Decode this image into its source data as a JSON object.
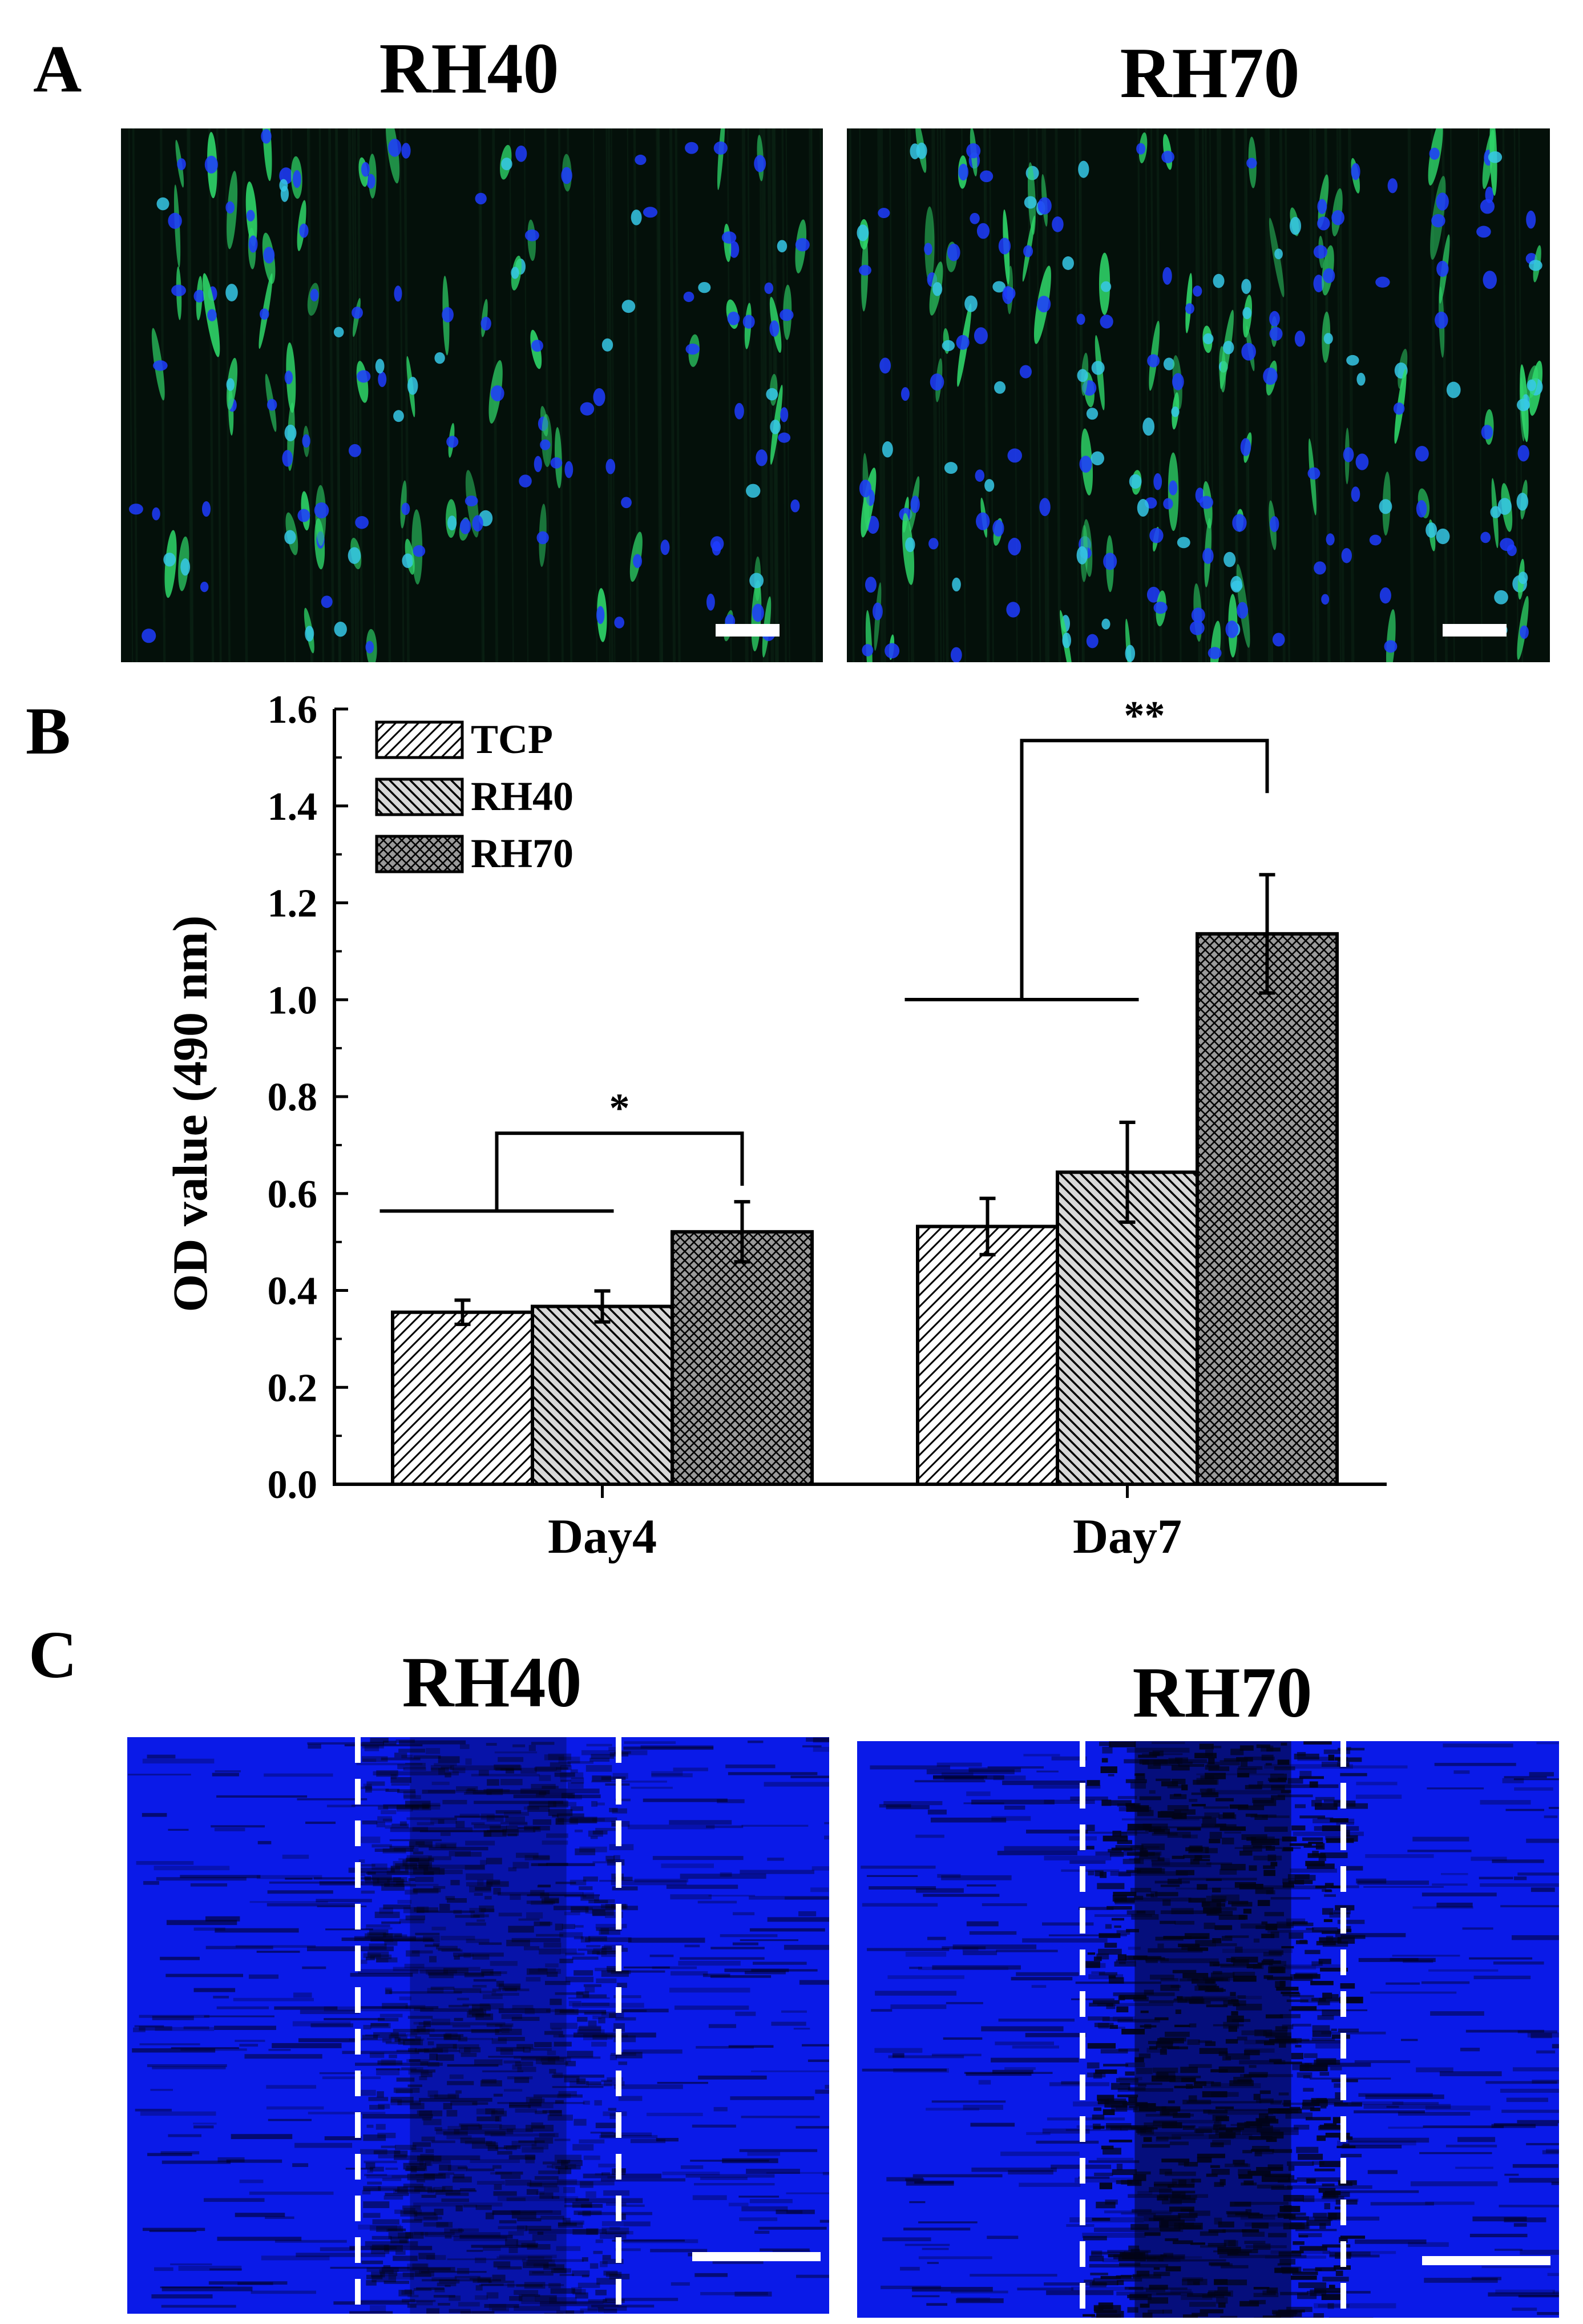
{
  "panel_a": {
    "letter": "A",
    "images": [
      {
        "title": "RH40"
      },
      {
        "title": "RH70"
      }
    ]
  },
  "panel_b": {
    "letter": "B"
  },
  "panel_c": {
    "letter": "C",
    "images": [
      {
        "title": "RH40"
      },
      {
        "title": "RH70"
      }
    ]
  },
  "colors": {
    "fluor_background": "#04100a",
    "nucleus_blue": "#1f3cff",
    "cytoskeleton_green": "#2fd86a",
    "migration_blue": "#0a1ae8",
    "scratch_dark": "#020418"
  },
  "chart_data": {
    "type": "bar",
    "categories": [
      "Day4",
      "Day7"
    ],
    "series": [
      {
        "name": "TCP",
        "values": [
          0.355,
          0.532
        ],
        "errors": [
          0.025,
          0.058
        ],
        "pattern": "diagonal-up"
      },
      {
        "name": "RH40",
        "values": [
          0.367,
          0.644
        ],
        "errors": [
          0.032,
          0.103
        ],
        "pattern": "diagonal-down"
      },
      {
        "name": "RH70",
        "values": [
          0.521,
          1.136
        ],
        "errors": [
          0.062,
          0.122
        ],
        "pattern": "crosshatch"
      }
    ],
    "ylabel": "OD value (490 nm)",
    "xlabel": "",
    "ylim": [
      0.0,
      1.6
    ],
    "yticks": [
      "0.0",
      "0.2",
      "0.4",
      "0.6",
      "0.8",
      "1.0",
      "1.2",
      "1.4",
      "1.6"
    ],
    "significance": [
      {
        "category": "Day4",
        "label": "*"
      },
      {
        "category": "Day7",
        "label": "**"
      }
    ],
    "legend_position": "top-left",
    "grid": false
  }
}
